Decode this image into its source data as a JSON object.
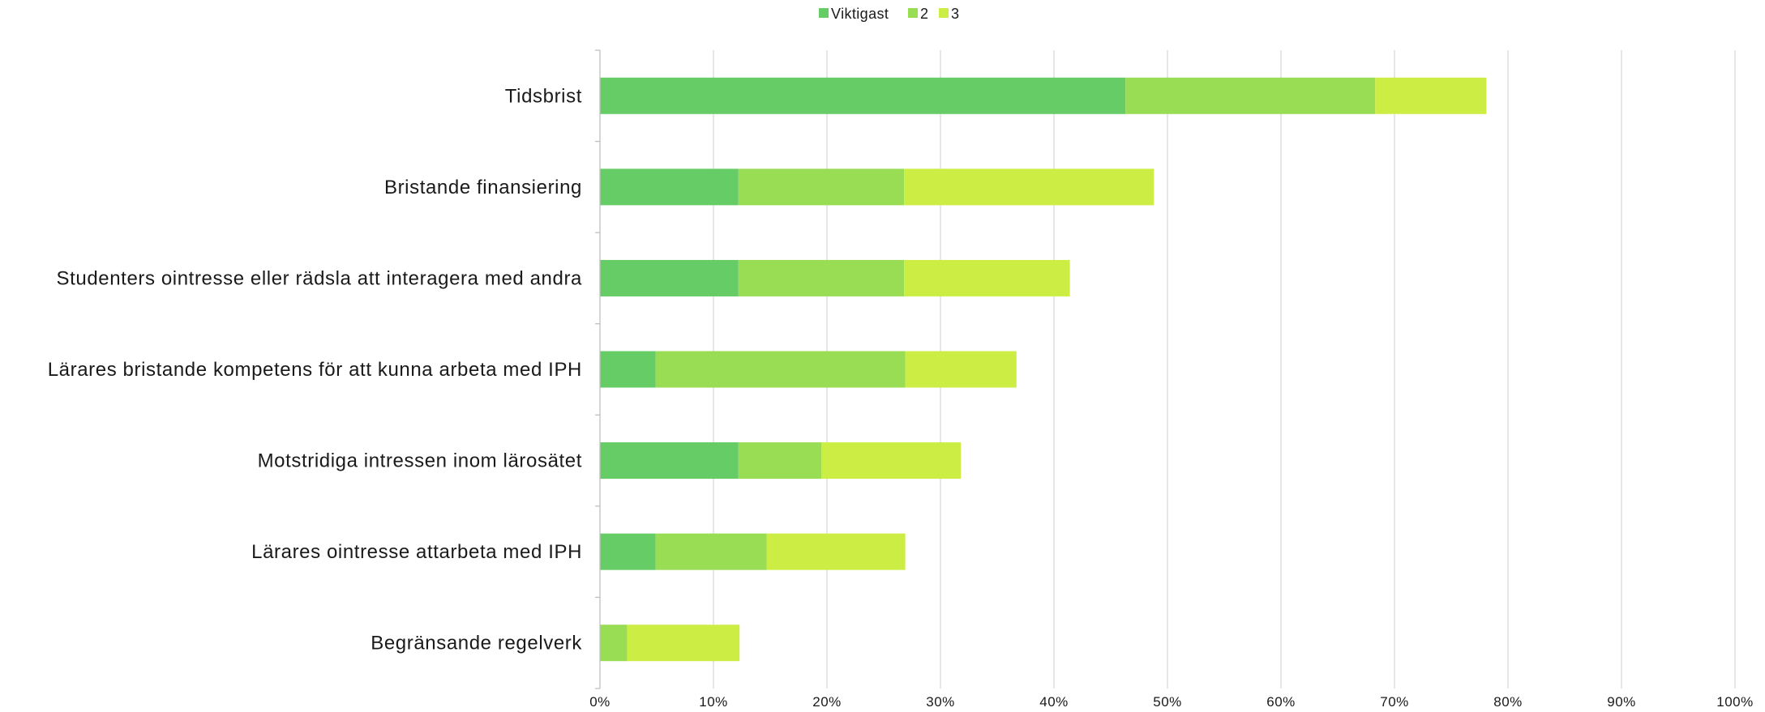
{
  "chart_data": {
    "type": "bar",
    "orientation": "horizontal",
    "stacked": true,
    "title": "",
    "xlabel": "",
    "ylabel": "",
    "categories": [
      "Tidsbrist",
      "Bristande finansiering",
      "Studenters ointresse eller rädsla att interagera med andra",
      "Lärares bristande kompetens för att kunna arbeta med IPH",
      "Motstridiga intressen inom lärosätet",
      "Lärares ointresse attarbeta med IPH",
      "Begränsande regelverk"
    ],
    "series": [
      {
        "name": "Viktigast",
        "color": "#66cc66",
        "values": [
          46.3,
          12.2,
          12.2,
          4.9,
          12.2,
          4.9,
          0
        ]
      },
      {
        "name": "2",
        "color": "#99dd55",
        "values": [
          22.0,
          14.6,
          14.6,
          22.0,
          7.3,
          9.8,
          2.4
        ]
      },
      {
        "name": "3",
        "color": "#ccee44",
        "values": [
          9.8,
          22.0,
          14.6,
          9.8,
          12.3,
          12.2,
          9.9
        ]
      }
    ],
    "xlim": [
      0,
      100
    ],
    "xticks": [
      "0%",
      "10%",
      "20%",
      "30%",
      "40%",
      "50%",
      "60%",
      "70%",
      "80%",
      "90%",
      "100%"
    ],
    "grid": "vertical",
    "legend": "top-center"
  }
}
